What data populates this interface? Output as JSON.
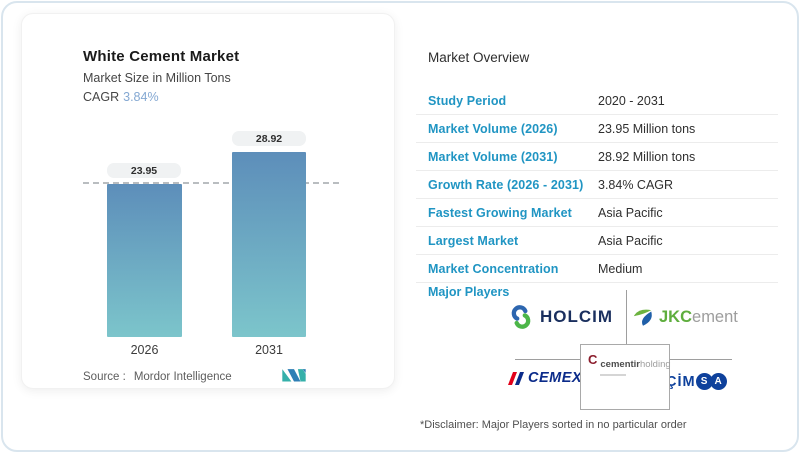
{
  "card": {
    "title": "White Cement Market",
    "subtitle": "Market Size in Million Tons",
    "cagr_label": "CAGR",
    "cagr_value": "3.84%",
    "source_label": "Source :",
    "source_value": "Mordor Intelligence"
  },
  "chart_data": {
    "type": "bar",
    "title": "White Cement Market",
    "ylabel": "Market Size in Million Tons",
    "categories": [
      "2026",
      "2031"
    ],
    "values": [
      23.95,
      28.92
    ],
    "value_labels": [
      "23.95",
      "28.92"
    ],
    "reference_line": 23.95,
    "cagr_percent": 3.84,
    "bar_color_top": "#5d8eba",
    "bar_color_bottom": "#7cc5cb",
    "grid": false,
    "legend": false
  },
  "overview": {
    "title": "Market Overview",
    "rows": [
      {
        "label": "Study Period",
        "value": "2020 - 2031"
      },
      {
        "label": "Market Volume (2026)",
        "value": "23.95 Million tons"
      },
      {
        "label": "Market Volume (2031)",
        "value": "28.92 Million tons"
      },
      {
        "label": "Growth Rate (2026 - 2031)",
        "value": "3.84% CAGR"
      },
      {
        "label": "Fastest Growing Market",
        "value": "Asia Pacific"
      },
      {
        "label": "Largest Market",
        "value": "Asia Pacific"
      },
      {
        "label": "Market Concentration",
        "value": "Medium"
      }
    ],
    "major_players_label": "Major Players",
    "disclaimer": "*Disclaimer: Major Players sorted in no particular order"
  },
  "players": {
    "holcim": {
      "name": "HOLCIM"
    },
    "jkcement": {
      "name_bold": "JKC",
      "name_light": "ement"
    },
    "cemex": {
      "name": "CEMEX"
    },
    "cementir": {
      "icon_letter": "C",
      "name_bold": "cementir",
      "name_light": "holding"
    },
    "cimsa": {
      "name_prefix": "ÇİM",
      "circle_letters": [
        "S",
        "A"
      ]
    }
  },
  "colors": {
    "accent_blue": "#2095c3",
    "cagr_blue": "#84a8d2",
    "bar_top": "#5d8eba",
    "bar_bottom": "#7cc5cb",
    "holcim_navy": "#1a2f5e",
    "jkc_green": "#5fae3e",
    "cemex_navy": "#0b2b8a",
    "cementir_red": "#8b1d2c",
    "cimsa_blue": "#0e419c"
  }
}
